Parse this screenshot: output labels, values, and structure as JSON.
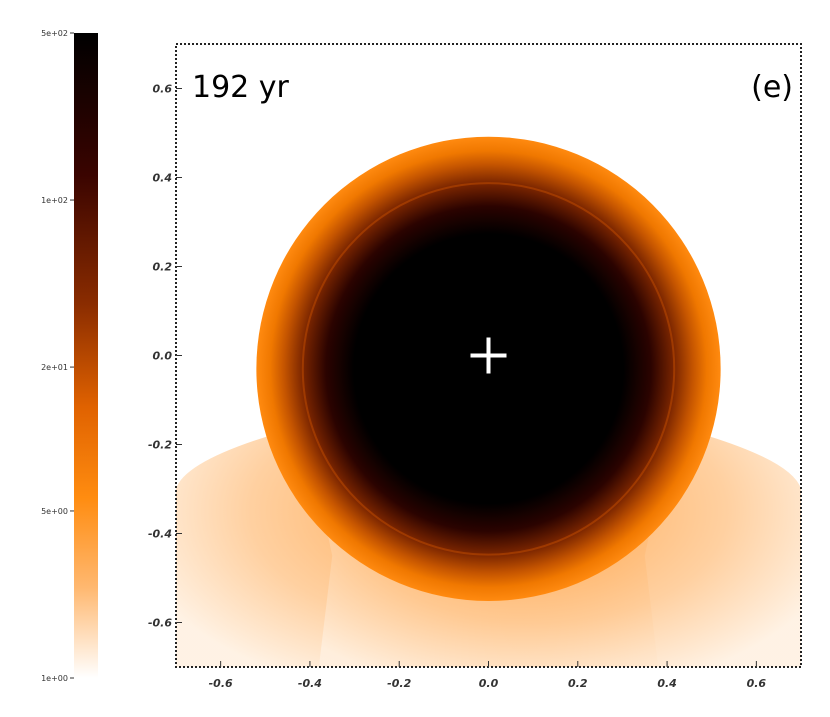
{
  "chart_data": {
    "type": "heatmap",
    "title": "",
    "xlabel": "",
    "ylabel": "",
    "xlim": [
      -0.7,
      0.7
    ],
    "ylim": [
      -0.7,
      0.7
    ],
    "x_ticks": [
      "-0.6",
      "-0.4",
      "-0.2",
      "0.0",
      "0.2",
      "0.4",
      "0.6"
    ],
    "x_tick_values": [
      -0.6,
      -0.4,
      -0.2,
      0.0,
      0.2,
      0.4,
      0.6
    ],
    "y_ticks": [
      "0.6",
      "0.4",
      "0.2",
      "0.0",
      "-0.2",
      "-0.4",
      "-0.6"
    ],
    "y_tick_values": [
      0.6,
      0.4,
      0.2,
      0.0,
      -0.2,
      -0.4,
      -0.6
    ],
    "grid": false,
    "annotations": {
      "time_label": "192 yr",
      "panel_label": "(e)"
    },
    "marker": {
      "symbol": "+",
      "x": 0.0,
      "y": 0.0,
      "color": "#ffffff"
    },
    "structure": {
      "shell_center": [
        0.0,
        -0.03
      ],
      "shell_radius": 0.52,
      "dark_core_radius": 0.3
    },
    "colorbar": {
      "scale": "log",
      "range": [
        1,
        500
      ],
      "ticks": [
        "5e+02",
        "1e+02",
        "2e+01",
        "5e+00",
        "1e+00"
      ],
      "tick_values": [
        500,
        100,
        20,
        5,
        1
      ],
      "colormap": [
        "#000000",
        "#3a0400",
        "#8a2c00",
        "#e06200",
        "#ff8c10",
        "#ffb870",
        "#ffffff"
      ]
    }
  }
}
